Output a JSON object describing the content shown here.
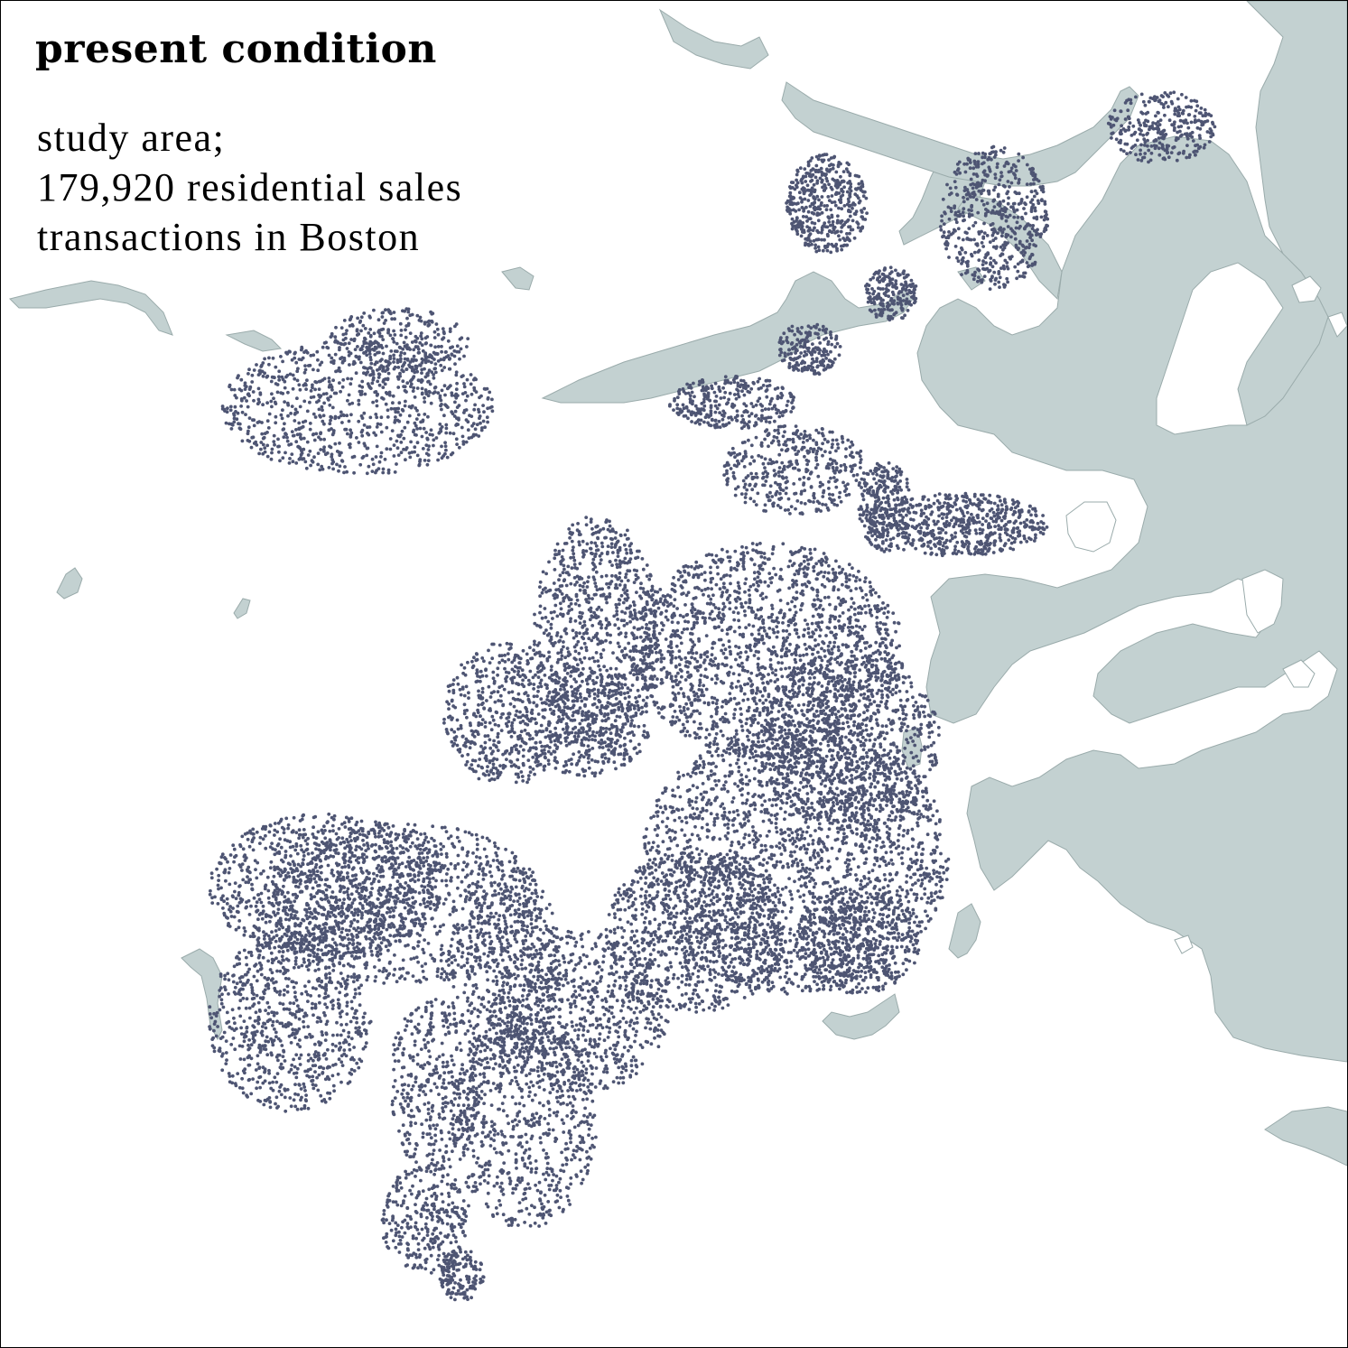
{
  "map": {
    "title": "present condition",
    "subtitle_lines": [
      "study area;",
      "179,920 residential sales",
      "transactions in Boston"
    ],
    "colors": {
      "water": "#c3d1d1",
      "water_edge": "#9aabab",
      "land": "#ffffff",
      "points": "#4e5573"
    },
    "layers": [
      "water-bodies",
      "residential-sales-points"
    ]
  }
}
